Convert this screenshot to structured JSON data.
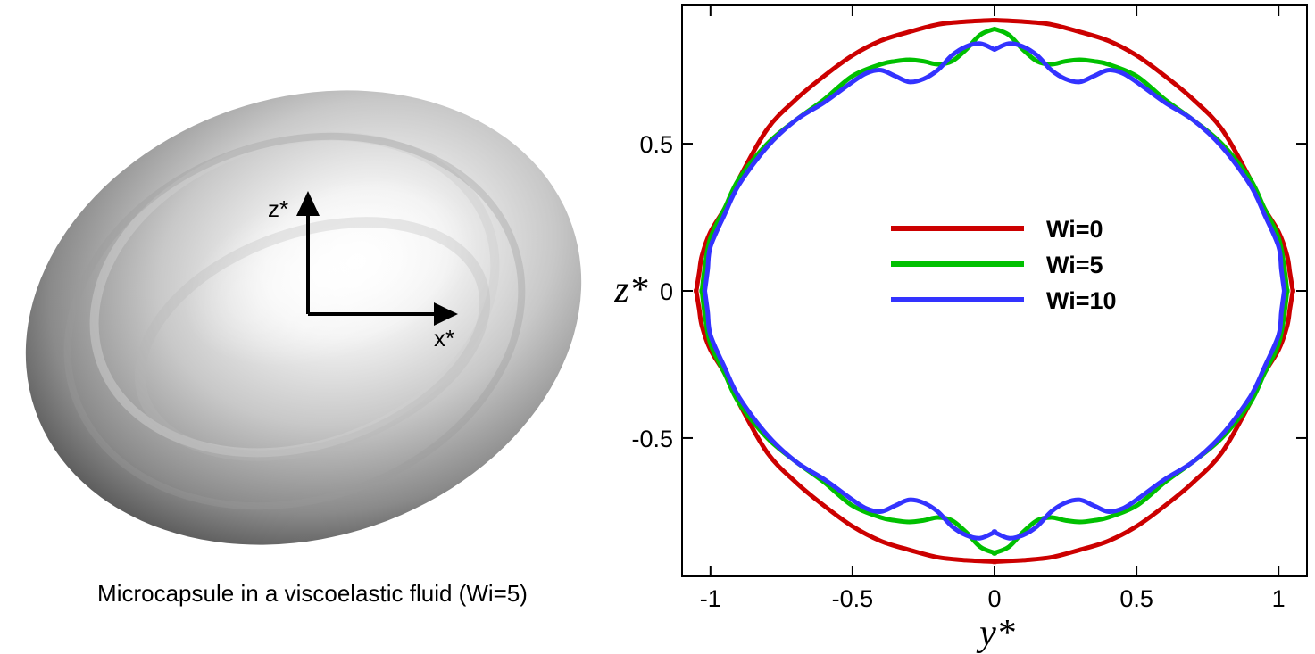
{
  "capsule_panel": {
    "caption": "Microcapsule in a viscoelastic fluid (Wi=5)",
    "axis_labels": {
      "vertical": "z*",
      "horizontal": "x*"
    }
  },
  "chart_data": {
    "type": "line",
    "title": "",
    "xlabel": "y*",
    "ylabel": "z*",
    "xlim": [
      -1.1,
      1.1
    ],
    "ylim": [
      -0.97,
      0.97
    ],
    "xticks": [
      -1,
      -0.5,
      0,
      0.5,
      1
    ],
    "yticks": [
      -0.5,
      0,
      0.5
    ],
    "xtick_labels": [
      "-1",
      "-0.5",
      "0",
      "0.5",
      "1"
    ],
    "ytick_labels": [
      "-0.5",
      "0",
      "0.5"
    ],
    "grid": false,
    "legend_position": "center",
    "series": [
      {
        "name": "Wi=0",
        "color": "#cc0000",
        "note": "closed contour, points given for one quadrant (y>=0, z>=0), symmetric about both axes",
        "x": [
          0.0,
          0.1,
          0.2,
          0.3,
          0.4,
          0.5,
          0.6,
          0.7,
          0.8,
          0.9,
          0.95,
          1.0,
          1.03,
          1.04,
          1.05
        ],
        "y": [
          0.92,
          0.915,
          0.905,
          0.88,
          0.85,
          0.8,
          0.73,
          0.65,
          0.55,
          0.38,
          0.28,
          0.2,
          0.12,
          0.06,
          0.0
        ]
      },
      {
        "name": "Wi=5",
        "color": "#00c000",
        "note": "closed contour, points given for one quadrant, symmetric about both axes",
        "x": [
          0.0,
          0.05,
          0.1,
          0.15,
          0.2,
          0.25,
          0.3,
          0.35,
          0.4,
          0.5,
          0.6,
          0.7,
          0.8,
          0.9,
          0.95,
          1.0,
          1.02,
          1.03
        ],
        "y": [
          0.89,
          0.87,
          0.82,
          0.78,
          0.77,
          0.78,
          0.785,
          0.78,
          0.77,
          0.73,
          0.65,
          0.58,
          0.5,
          0.38,
          0.28,
          0.18,
          0.08,
          0.0
        ]
      },
      {
        "name": "Wi=10",
        "color": "#3333ff",
        "note": "closed contour, points given for one quadrant, symmetric about both axes",
        "x": [
          0.0,
          0.05,
          0.1,
          0.15,
          0.2,
          0.25,
          0.3,
          0.35,
          0.4,
          0.45,
          0.5,
          0.6,
          0.7,
          0.8,
          0.9,
          0.95,
          1.0,
          1.01,
          1.02
        ],
        "y": [
          0.82,
          0.84,
          0.83,
          0.8,
          0.75,
          0.72,
          0.71,
          0.73,
          0.75,
          0.74,
          0.71,
          0.64,
          0.58,
          0.49,
          0.36,
          0.26,
          0.15,
          0.07,
          0.0
        ]
      }
    ]
  }
}
